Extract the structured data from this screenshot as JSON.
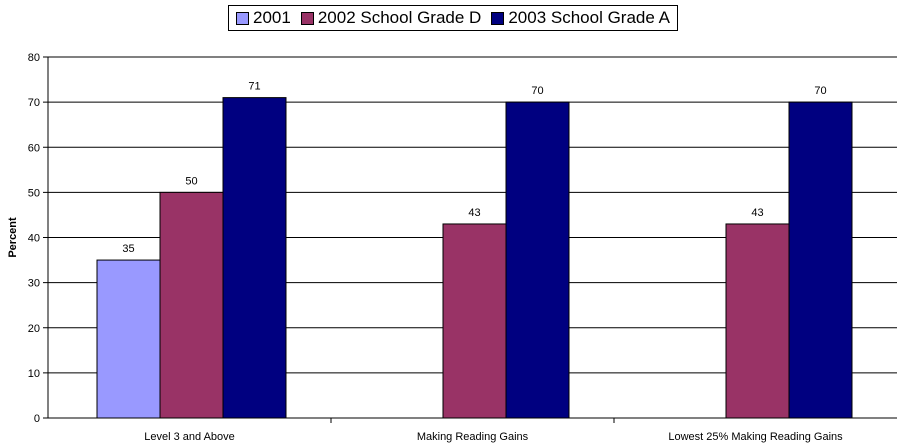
{
  "chart_data": {
    "type": "bar",
    "categories": [
      "Level 3 and Above",
      "Making Reading Gains",
      "Lowest 25% Making Reading Gains"
    ],
    "series": [
      {
        "name": "2001",
        "color": "#9999ff",
        "values": [
          35,
          null,
          null
        ]
      },
      {
        "name": "2002 School Grade D",
        "color": "#993366",
        "values": [
          50,
          43,
          43
        ]
      },
      {
        "name": "2003 School Grade A",
        "color": "#000080",
        "values": [
          71,
          70,
          70
        ]
      }
    ],
    "ylabel": "Percent",
    "ylim": [
      0,
      80
    ],
    "yticks": [
      0,
      10,
      20,
      30,
      40,
      50,
      60,
      70,
      80
    ],
    "grid": true,
    "legend": "top-center"
  }
}
